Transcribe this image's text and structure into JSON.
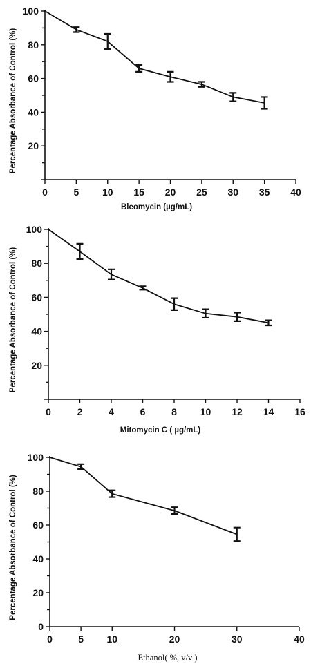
{
  "chart_data": [
    {
      "type": "line",
      "xlabel": "Bleomycin (µg/mL)",
      "ylabel": "Percentage  Absorbance of Control (%)",
      "xlim": [
        0,
        40
      ],
      "ylim": [
        0,
        100
      ],
      "xticks": [
        0,
        5,
        10,
        15,
        20,
        25,
        30,
        35,
        40
      ],
      "yticks": [
        20,
        40,
        60,
        80,
        100
      ],
      "x": [
        0,
        5,
        10,
        15,
        20,
        25,
        30,
        35
      ],
      "y": [
        100,
        89,
        82,
        66,
        61,
        56.5,
        49,
        45.5
      ],
      "err": [
        0,
        1.5,
        4.5,
        2,
        3,
        1.5,
        2.5,
        3.5
      ]
    },
    {
      "type": "line",
      "xlabel": "Mitomycin C ( µg/mL)",
      "ylabel": "Percentage  Absorbance of Control (%)",
      "xlim": [
        0,
        16
      ],
      "ylim": [
        0,
        100
      ],
      "xticks": [
        0,
        2,
        4,
        6,
        8,
        10,
        12,
        14,
        16
      ],
      "yticks": [
        20,
        40,
        60,
        80,
        100
      ],
      "x": [
        0,
        2,
        4,
        6,
        8,
        10,
        12,
        14
      ],
      "y": [
        100,
        87,
        73.5,
        65.5,
        56,
        50.5,
        48.5,
        45
      ],
      "err": [
        0,
        4.5,
        3,
        1,
        3.5,
        2.5,
        2.5,
        1.5
      ]
    },
    {
      "type": "line",
      "xlabel": "Ethanol( %, v/v )",
      "ylabel": "Percentage  Absorbance of Control (%)",
      "xlim": [
        0,
        40
      ],
      "ylim": [
        0,
        100
      ],
      "xticks": [
        0,
        5,
        10,
        20,
        30,
        40
      ],
      "yticks": [
        0,
        20,
        40,
        60,
        80,
        100
      ],
      "x": [
        0,
        5,
        10,
        20,
        30
      ],
      "y": [
        100,
        94.5,
        78.5,
        68.5,
        54.5
      ],
      "err": [
        0,
        1.5,
        2,
        2,
        4
      ]
    }
  ]
}
